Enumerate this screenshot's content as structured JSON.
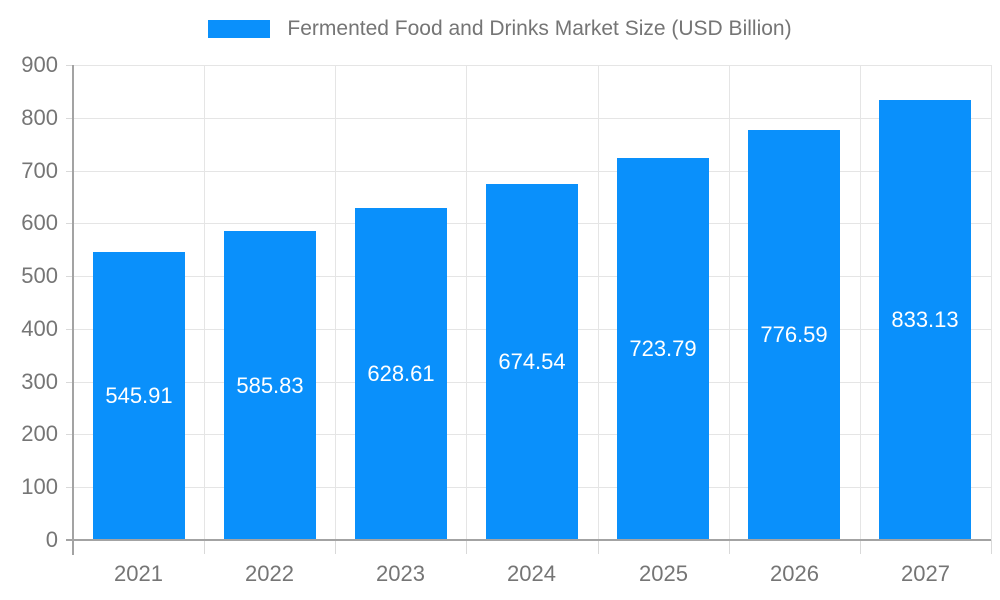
{
  "chart_data": {
    "type": "bar",
    "title": "Fermented Food and Drinks Market Size (USD Billion)",
    "categories": [
      "2021",
      "2022",
      "2023",
      "2024",
      "2025",
      "2026",
      "2027"
    ],
    "values": [
      545.91,
      585.83,
      628.61,
      674.54,
      723.79,
      776.59,
      833.13
    ],
    "value_labels": [
      "545.91",
      "585.83",
      "628.61",
      "674.54",
      "723.79",
      "776.59",
      "833.13"
    ],
    "xlabel": "",
    "ylabel": "",
    "ylim": [
      0,
      900
    ],
    "yticks": [
      "0",
      "100",
      "200",
      "300",
      "400",
      "500",
      "600",
      "700",
      "800",
      "900"
    ],
    "grid": "on",
    "legend_position": "top",
    "legend_label": "Fermented Food and Drinks Market Size (USD Billion)",
    "colors": {
      "bar": "#0a90fb",
      "bar_label_text": "#ffffff",
      "axis_text": "#757575",
      "grid_line": "#e5e5e5",
      "tick_line": "#d9d9d9",
      "axis_line": "#a3a3a3",
      "background": "#ffffff"
    }
  }
}
